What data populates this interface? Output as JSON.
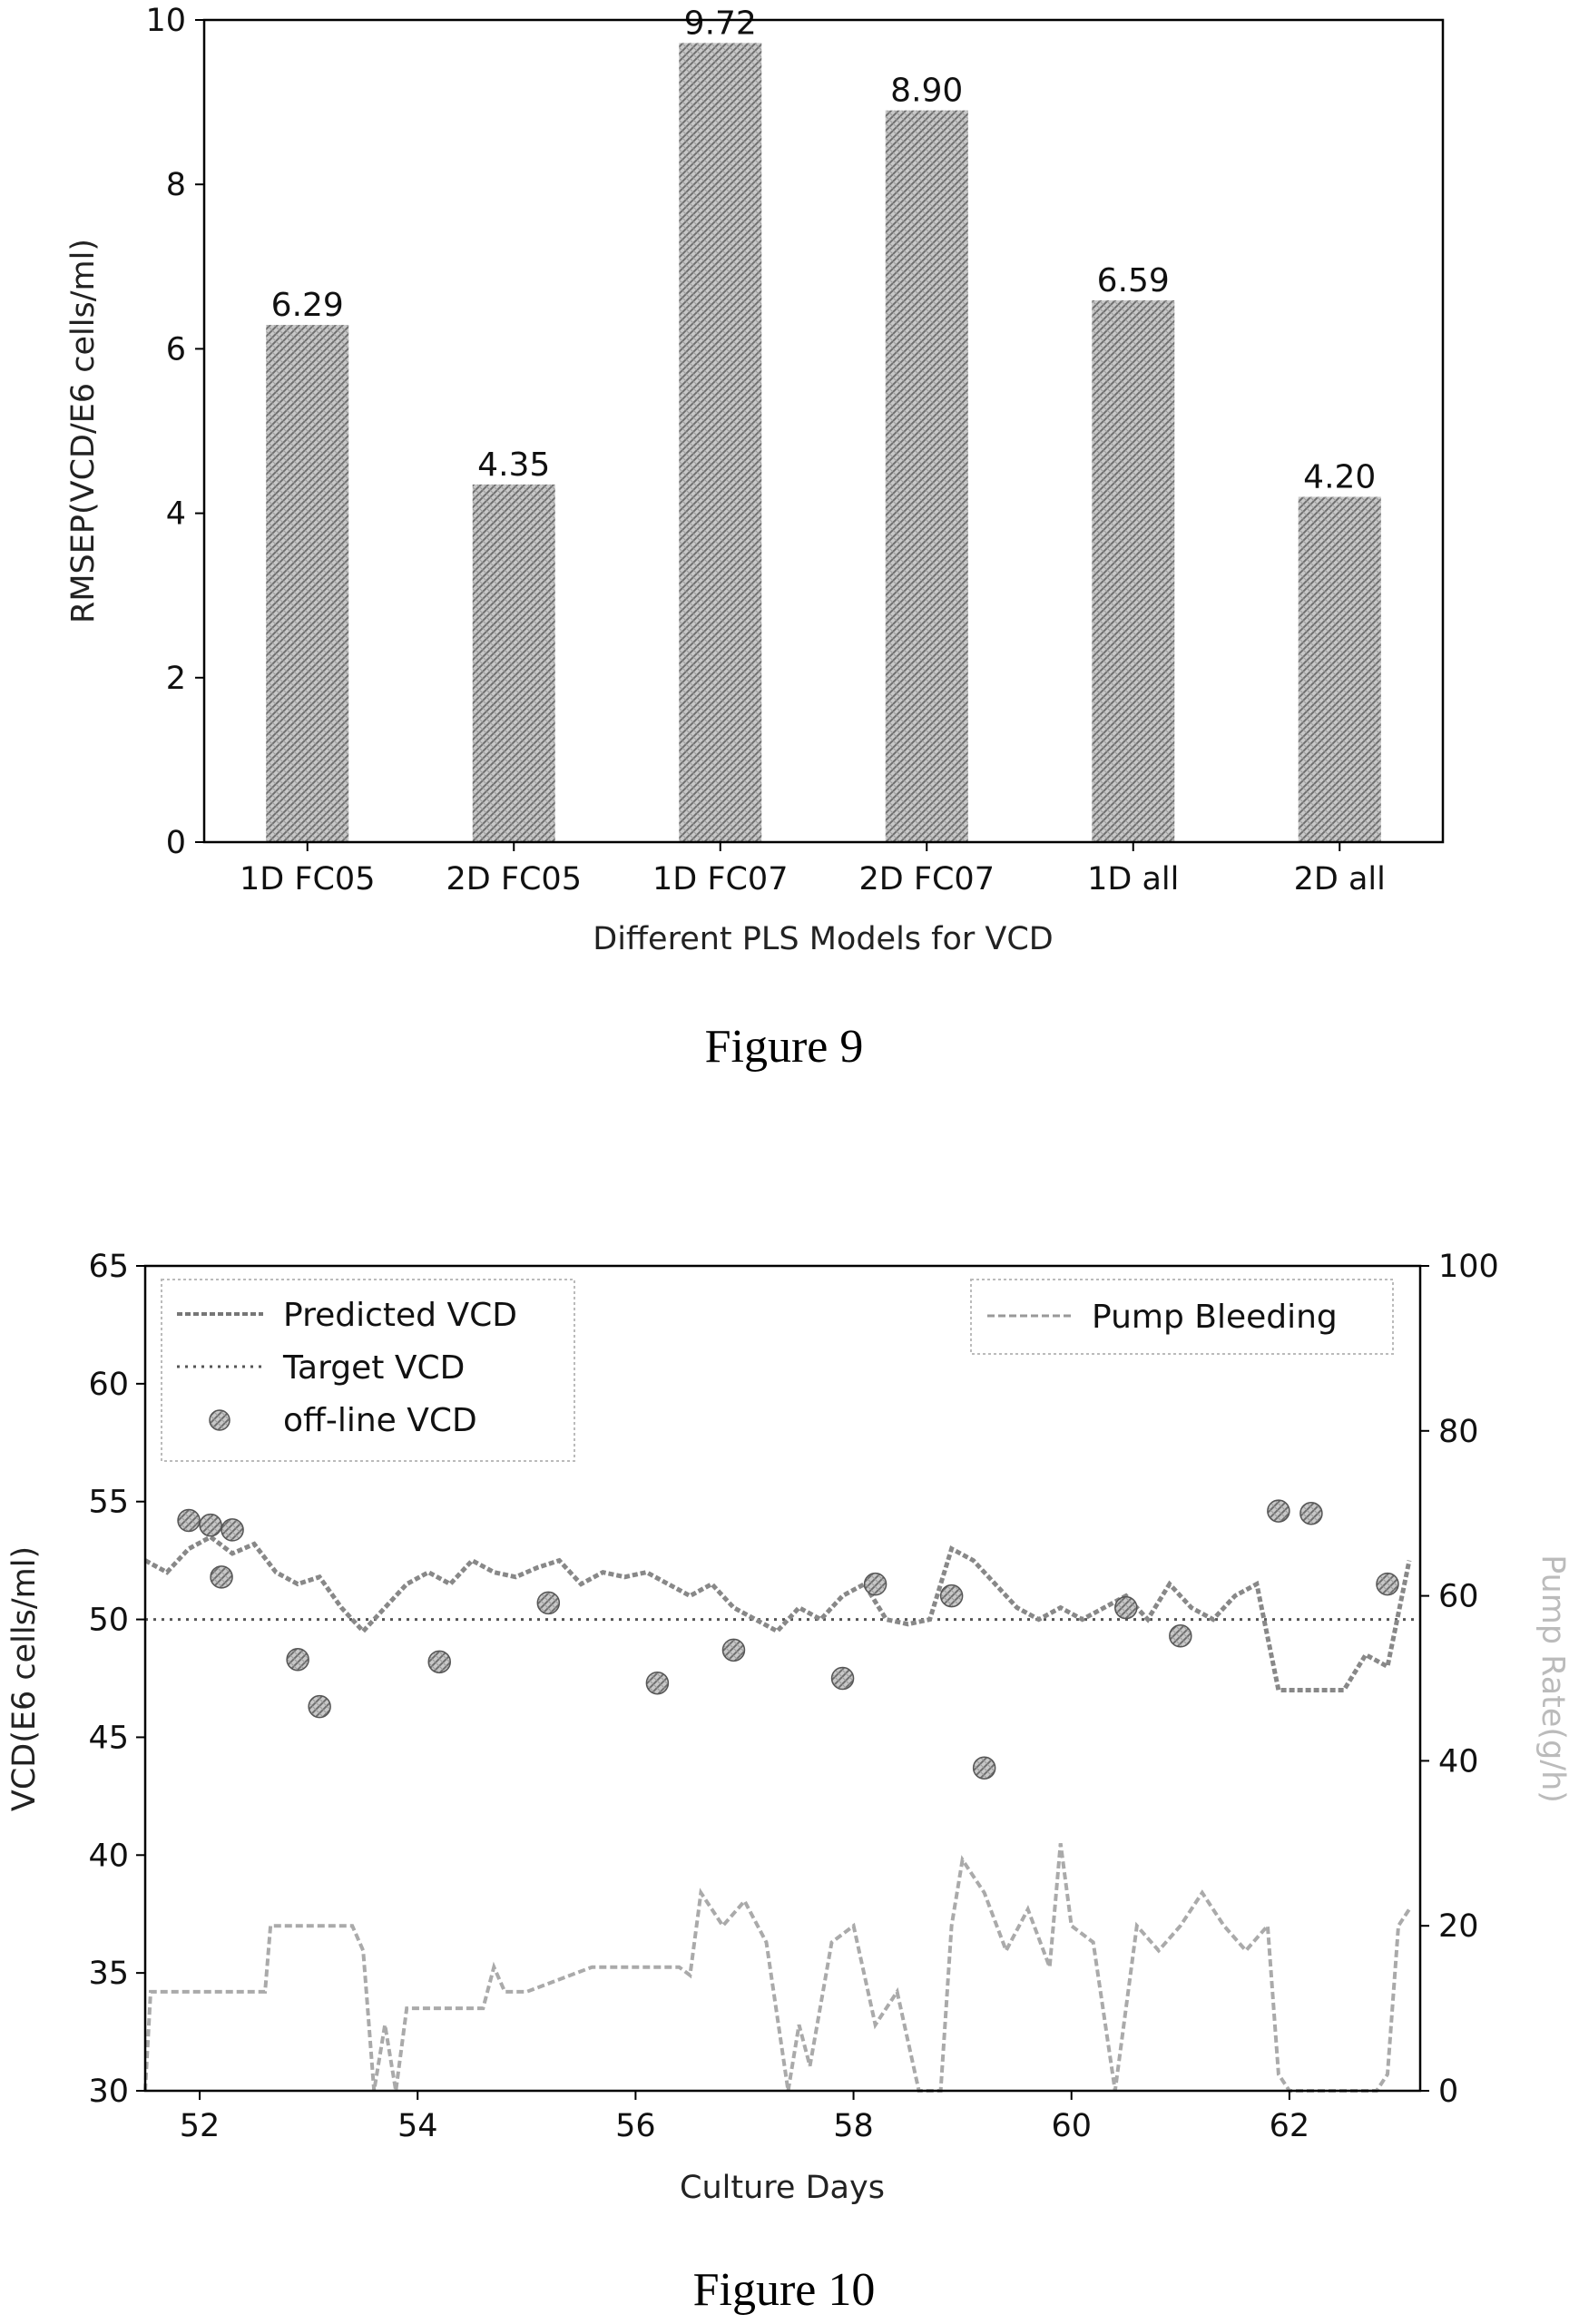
{
  "chart_data": [
    {
      "type": "bar",
      "caption": "Figure 9",
      "xlabel": "Different PLS Models for VCD",
      "ylabel": "RMSEP(VCD/E6 cells/ml)",
      "ylim": [
        0,
        10
      ],
      "yticks": [
        "0",
        "2",
        "4",
        "6",
        "8",
        "10"
      ],
      "categories": [
        "1D FC05",
        "2D FC05",
        "1D FC07",
        "2D FC07",
        "1D all",
        "2D all"
      ],
      "values": [
        6.29,
        4.35,
        9.72,
        8.9,
        6.59,
        4.2
      ],
      "value_labels": [
        "6.29",
        "4.35",
        "9.72",
        "8.90",
        "6.59",
        "4.20"
      ],
      "grid": false
    },
    {
      "type": "line",
      "caption": "Figure 10",
      "xlabel": "Culture Days",
      "ylabel": "VCD(E6 cells/ml)",
      "ylabel_right": "Pump Rate(g/h)",
      "xlim": [
        51.5,
        63.2
      ],
      "ylim": [
        30,
        65
      ],
      "ylim_right": [
        0,
        100
      ],
      "xticks": [
        "52",
        "54",
        "56",
        "58",
        "60",
        "62"
      ],
      "yticks": [
        "30",
        "35",
        "40",
        "45",
        "50",
        "55",
        "60",
        "65"
      ],
      "yticks_right": [
        "0",
        "20",
        "40",
        "60",
        "80",
        "100"
      ],
      "grid": false,
      "legend_left": {
        "placement": "top-left",
        "entries": [
          "Predicted VCD",
          "Target VCD",
          "off-line VCD"
        ]
      },
      "legend_right": {
        "placement": "top-right",
        "entries": [
          "Pump Bleeding"
        ]
      },
      "series": [
        {
          "name": "Predicted VCD",
          "axis": "left",
          "x": [
            51.5,
            51.7,
            51.9,
            52.1,
            52.3,
            52.5,
            52.7,
            52.9,
            53.1,
            53.3,
            53.5,
            53.7,
            53.9,
            54.1,
            54.3,
            54.5,
            54.7,
            54.9,
            55.1,
            55.3,
            55.5,
            55.7,
            55.9,
            56.1,
            56.3,
            56.5,
            56.7,
            56.9,
            57.1,
            57.3,
            57.5,
            57.7,
            57.9,
            58.1,
            58.3,
            58.5,
            58.7,
            58.9,
            59.1,
            59.3,
            59.5,
            59.7,
            59.9,
            60.1,
            60.3,
            60.5,
            60.7,
            60.9,
            61.1,
            61.3,
            61.5,
            61.7,
            61.9,
            62.1,
            62.3,
            62.5,
            62.7,
            62.9,
            63.1
          ],
          "y": [
            52.5,
            52.0,
            53.0,
            53.5,
            52.8,
            53.2,
            52.0,
            51.5,
            51.8,
            50.5,
            49.5,
            50.5,
            51.5,
            52.0,
            51.5,
            52.5,
            52.0,
            51.8,
            52.2,
            52.5,
            51.5,
            52.0,
            51.8,
            52.0,
            51.5,
            51.0,
            51.5,
            50.5,
            50.0,
            49.5,
            50.5,
            50.0,
            51.0,
            51.5,
            50.0,
            49.8,
            50.0,
            53.0,
            52.5,
            51.5,
            50.5,
            50.0,
            50.5,
            50.0,
            50.5,
            51.0,
            50.0,
            51.5,
            50.5,
            50.0,
            51.0,
            51.5,
            47.0,
            47.0,
            47.0,
            47.0,
            48.5,
            48.0,
            52.5
          ]
        },
        {
          "name": "Target VCD",
          "axis": "left",
          "x": [
            51.5,
            63.2
          ],
          "y": [
            50,
            50
          ]
        },
        {
          "name": "off-line VCD",
          "axis": "left",
          "x": [
            51.9,
            52.1,
            52.2,
            52.3,
            52.9,
            53.1,
            54.2,
            55.2,
            56.2,
            56.9,
            57.9,
            58.2,
            58.9,
            59.2,
            60.5,
            61.0,
            61.9,
            62.2,
            62.9
          ],
          "y": [
            54.2,
            54.0,
            51.8,
            53.8,
            48.3,
            46.3,
            48.2,
            50.7,
            47.3,
            48.7,
            47.5,
            51.5,
            51.0,
            43.7,
            50.5,
            49.3,
            54.6,
            54.5,
            51.5
          ]
        },
        {
          "name": "Pump Bleeding",
          "axis": "right",
          "x": [
            51.5,
            51.55,
            51.6,
            52.6,
            52.65,
            53.4,
            53.5,
            53.6,
            53.7,
            53.8,
            53.9,
            54.0,
            54.6,
            54.7,
            54.8,
            55.0,
            55.6,
            56.4,
            56.5,
            56.6,
            56.8,
            57.0,
            57.2,
            57.4,
            57.5,
            57.6,
            57.8,
            58.0,
            58.2,
            58.4,
            58.6,
            58.8,
            58.9,
            59.0,
            59.2,
            59.4,
            59.6,
            59.8,
            59.9,
            60.0,
            60.2,
            60.4,
            60.5,
            60.6,
            60.8,
            61.0,
            61.2,
            61.4,
            61.6,
            61.8,
            61.9,
            62.0,
            62.8,
            62.9,
            63.0,
            63.1
          ],
          "y": [
            0,
            12,
            12,
            12,
            20,
            20,
            17,
            0,
            8,
            0,
            10,
            10,
            10,
            15,
            12,
            12,
            15,
            15,
            14,
            24,
            20,
            23,
            18,
            0,
            8,
            3,
            18,
            20,
            8,
            12,
            0,
            0,
            20,
            28,
            24,
            17,
            22,
            15,
            30,
            20,
            18,
            0,
            10,
            20,
            17,
            20,
            24,
            20,
            17,
            20,
            2,
            0,
            0,
            2,
            20,
            22
          ]
        }
      ]
    }
  ]
}
